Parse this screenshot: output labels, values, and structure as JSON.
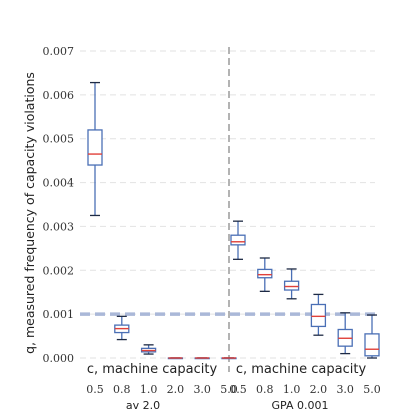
{
  "chart_data": {
    "type": "box",
    "ylabel": "q, measured frequency of capacity violations",
    "ylim": [
      0,
      0.007
    ],
    "yticks": [
      "0.000",
      "0.001",
      "0.002",
      "0.003",
      "0.004",
      "0.005",
      "0.006",
      "0.007"
    ],
    "threshold": 0.001,
    "grid": "horizontal dashed",
    "groups": [
      {
        "name": "av 2.0",
        "xlabel": "c, machine capacity",
        "categories": [
          "0.5",
          "0.8",
          "1.0",
          "2.0",
          "3.0",
          "5.0"
        ],
        "boxes": [
          {
            "whisker_low": 0.00325,
            "q1": 0.0044,
            "median": 0.00465,
            "q3": 0.0052,
            "whisker_high": 0.00628
          },
          {
            "whisker_low": 0.00042,
            "q1": 0.00058,
            "median": 0.00067,
            "q3": 0.00075,
            "whisker_high": 0.00095
          },
          {
            "whisker_low": 9e-05,
            "q1": 0.00014,
            "median": 0.00017,
            "q3": 0.00022,
            "whisker_high": 0.0003
          },
          {
            "whisker_low": 0.0,
            "q1": 0.0,
            "median": 0.0,
            "q3": 0.0,
            "whisker_high": 0.0
          },
          {
            "whisker_low": 0.0,
            "q1": 0.0,
            "median": 0.0,
            "q3": 0.0,
            "whisker_high": 0.0
          },
          {
            "whisker_low": 0.0,
            "q1": 0.0,
            "median": 0.0,
            "q3": 0.0,
            "whisker_high": 0.0
          }
        ]
      },
      {
        "name": "GPA 0.001",
        "xlabel": "c, machine capacity",
        "categories": [
          "0.5",
          "0.8",
          "1.0",
          "2.0",
          "3.0",
          "5.0"
        ],
        "boxes": [
          {
            "whisker_low": 0.00225,
            "q1": 0.00258,
            "median": 0.00265,
            "q3": 0.0028,
            "whisker_high": 0.00312
          },
          {
            "whisker_low": 0.00152,
            "q1": 0.00183,
            "median": 0.0019,
            "q3": 0.00202,
            "whisker_high": 0.00228
          },
          {
            "whisker_low": 0.00135,
            "q1": 0.00155,
            "median": 0.00163,
            "q3": 0.00175,
            "whisker_high": 0.00203
          },
          {
            "whisker_low": 0.00052,
            "q1": 0.00072,
            "median": 0.00095,
            "q3": 0.00122,
            "whisker_high": 0.00145
          },
          {
            "whisker_low": 0.0001,
            "q1": 0.00027,
            "median": 0.00045,
            "q3": 0.00065,
            "whisker_high": 0.00103
          },
          {
            "whisker_low": 0.0,
            "q1": 5e-05,
            "median": 0.0002,
            "q3": 0.00055,
            "whisker_high": 0.00098
          }
        ]
      }
    ],
    "colors": {
      "box": "#4a6fb5",
      "median": "#e0413a",
      "threshold": "#aab8d8",
      "grid": "#e2e2e2",
      "divider": "#9a9a9a"
    }
  }
}
